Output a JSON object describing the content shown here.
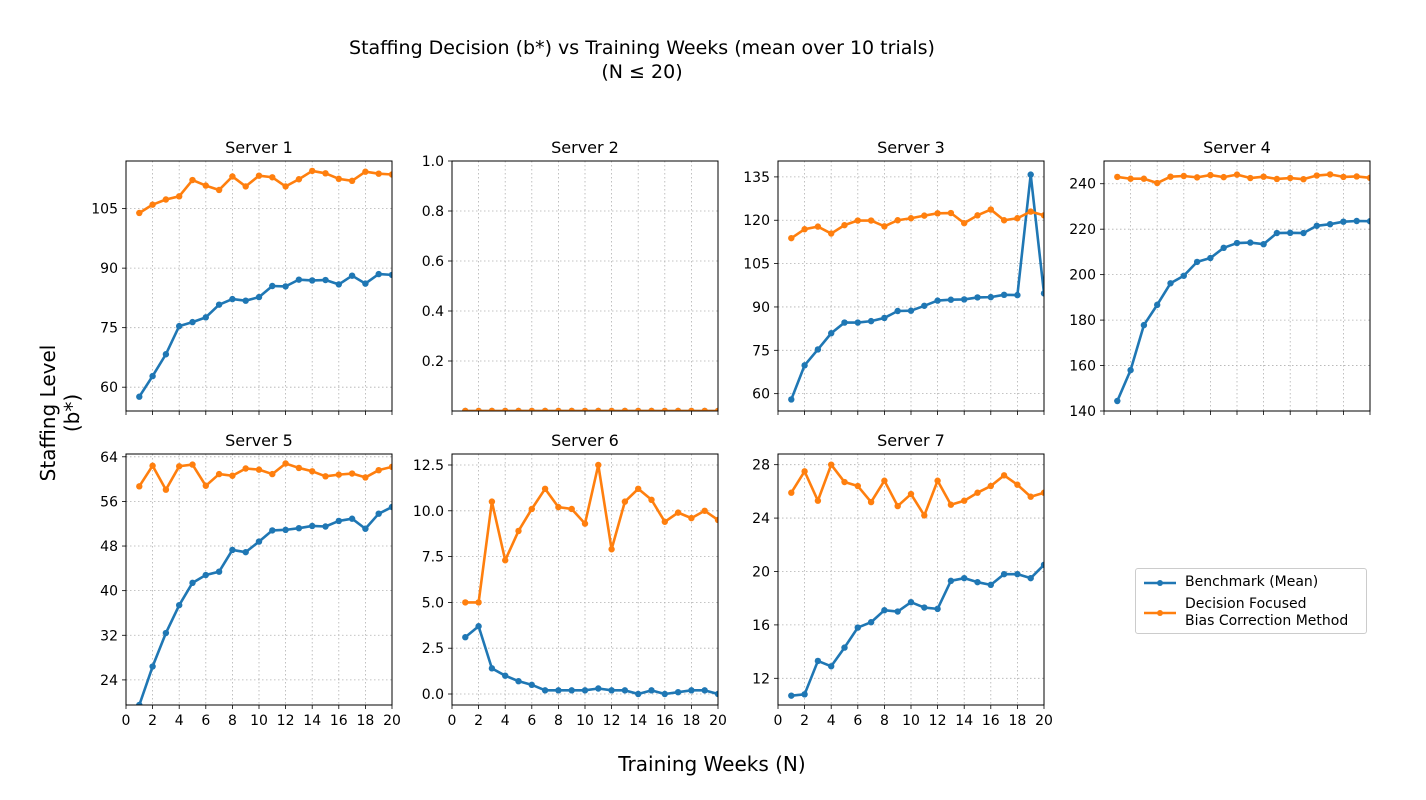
{
  "figure": {
    "title_line1": "Staffing Decision (b*) vs Training Weeks (mean over 10 trials)",
    "title_line2": "(N ≤ 20)",
    "xlabel": "Training Weeks (N)",
    "ylabel": "Staffing Level (b*)"
  },
  "legend": {
    "benchmark_label": "Benchmark (Mean)",
    "dfbc_label_line1": "Decision Focused",
    "dfbc_label_line2": "Bias Correction Method"
  },
  "colors": {
    "benchmark": "#1f77b4",
    "dfbc": "#ff7f0e",
    "grid": "#b0b0b0"
  },
  "chart_data": {
    "type": "line",
    "x": [
      1,
      2,
      3,
      4,
      5,
      6,
      7,
      8,
      9,
      10,
      11,
      12,
      13,
      14,
      15,
      16,
      17,
      18,
      19,
      20
    ],
    "xlim": [
      0,
      20
    ],
    "xticks": [
      0,
      2,
      4,
      6,
      8,
      10,
      12,
      14,
      16,
      18,
      20
    ],
    "series_names": [
      "Benchmark (Mean)",
      "Decision Focused Bias Correction Method"
    ],
    "panels": [
      {
        "title": "Server 1",
        "ylim": [
          54,
          117
        ],
        "yticks": [
          60,
          75,
          90,
          105
        ],
        "ytick_labels": [
          "60",
          "75",
          "90",
          "105"
        ],
        "series": [
          {
            "name": "Benchmark (Mean)",
            "values": [
              57.6,
              62.8,
              68.3,
              75.4,
              76.4,
              77.6,
              80.8,
              82.2,
              81.8,
              82.7,
              85.5,
              85.4,
              87.1,
              86.9,
              87.0,
              85.9,
              88.1,
              86.1,
              88.5,
              88.3
            ]
          },
          {
            "name": "Decision Focused Bias Correction Method",
            "values": [
              103.9,
              106.0,
              107.3,
              108.1,
              112.2,
              110.8,
              109.7,
              113.1,
              110.6,
              113.3,
              112.9,
              110.6,
              112.4,
              114.5,
              113.9,
              112.5,
              112.0,
              114.3,
              113.8,
              113.6
            ]
          }
        ]
      },
      {
        "title": "Server 2",
        "ylim": [
          0,
          1
        ],
        "yticks": [
          0.2,
          0.4,
          0.6,
          0.8,
          1.0
        ],
        "ytick_labels": [
          "0.2",
          "0.4",
          "0.6",
          "0.8",
          "1.0"
        ],
        "series": [
          {
            "name": "Benchmark (Mean)",
            "values": [
              0,
              0,
              0,
              0,
              0,
              0,
              0,
              0,
              0,
              0,
              0,
              0,
              0,
              0,
              0,
              0,
              0,
              0,
              0,
              0
            ]
          },
          {
            "name": "Decision Focused Bias Correction Method",
            "values": [
              0,
              0,
              0,
              0,
              0,
              0,
              0,
              0,
              0,
              0,
              0,
              0,
              0,
              0,
              0,
              0,
              0,
              0,
              0,
              0
            ]
          }
        ]
      },
      {
        "title": "Server 3",
        "ylim": [
          54,
          140.5
        ],
        "yticks": [
          60,
          75,
          90,
          105,
          120,
          135
        ],
        "ytick_labels": [
          "60",
          "75",
          "90",
          "105",
          "120",
          "135"
        ],
        "series": [
          {
            "name": "Benchmark (Mean)",
            "values": [
              58.0,
              69.8,
              75.3,
              80.9,
              84.6,
              84.6,
              85.1,
              86.2,
              88.6,
              88.7,
              90.4,
              92.2,
              92.5,
              92.6,
              93.3,
              93.4,
              94.2,
              94.1,
              135.8,
              94.7
            ]
          },
          {
            "name": "Decision Focused Bias Correction Method",
            "values": [
              113.8,
              116.9,
              117.8,
              115.4,
              118.3,
              119.9,
              119.9,
              117.9,
              120.0,
              120.7,
              121.6,
              122.4,
              122.5,
              119.0,
              121.7,
              123.7,
              120.0,
              120.7,
              123.0,
              121.7
            ]
          }
        ]
      },
      {
        "title": "Server 4",
        "ylim": [
          140,
          250
        ],
        "yticks": [
          140,
          160,
          180,
          200,
          220,
          240
        ],
        "ytick_labels": [
          "140",
          "160",
          "180",
          "200",
          "220",
          "240"
        ],
        "series": [
          {
            "name": "Benchmark (Mean)",
            "values": [
              144.4,
              158.0,
              177.8,
              186.7,
              196.2,
              199.5,
              205.6,
              207.3,
              211.8,
              213.9,
              214.1,
              213.4,
              218.3,
              218.4,
              218.3,
              221.5,
              222.2,
              223.3,
              223.6,
              223.5
            ]
          },
          {
            "name": "Decision Focused Bias Correction Method",
            "values": [
              243.0,
              242.2,
              242.2,
              240.3,
              243.1,
              243.4,
              242.8,
              243.8,
              242.9,
              244.0,
              242.5,
              243.1,
              242.1,
              242.5,
              242.0,
              243.6,
              244.1,
              243.0,
              243.2,
              242.6
            ]
          }
        ]
      },
      {
        "title": "Server 5",
        "ylim": [
          19.5,
          64.5
        ],
        "yticks": [
          24,
          32,
          40,
          48,
          56,
          64
        ],
        "ytick_labels": [
          "24",
          "32",
          "40",
          "48",
          "56",
          "64"
        ],
        "series": [
          {
            "name": "Benchmark (Mean)",
            "values": [
              19.5,
              26.4,
              32.4,
              37.4,
              41.4,
              42.8,
              43.4,
              47.3,
              46.9,
              48.8,
              50.8,
              50.9,
              51.2,
              51.6,
              51.5,
              52.5,
              52.9,
              51.1,
              53.8,
              55.0
            ]
          },
          {
            "name": "Decision Focused Bias Correction Method",
            "values": [
              58.7,
              62.4,
              58.1,
              62.3,
              62.6,
              58.8,
              60.9,
              60.6,
              61.9,
              61.7,
              60.9,
              62.8,
              62.0,
              61.4,
              60.5,
              60.8,
              61.0,
              60.3,
              61.6,
              62.2
            ]
          }
        ]
      },
      {
        "title": "Server 6",
        "ylim": [
          -0.6,
          13.1
        ],
        "yticks": [
          0.0,
          2.5,
          5.0,
          7.5,
          10.0,
          12.5
        ],
        "ytick_labels": [
          "0.0",
          "2.5",
          "5.0",
          "7.5",
          "10.0",
          "12.5"
        ],
        "series": [
          {
            "name": "Benchmark (Mean)",
            "values": [
              3.1,
              3.7,
              1.4,
              1.0,
              0.7,
              0.5,
              0.2,
              0.2,
              0.2,
              0.2,
              0.3,
              0.2,
              0.2,
              0.0,
              0.2,
              0.0,
              0.1,
              0.2,
              0.2,
              0.0
            ]
          },
          {
            "name": "Decision Focused Bias Correction Method",
            "values": [
              5.0,
              5.0,
              10.5,
              7.3,
              8.9,
              10.1,
              11.2,
              10.2,
              10.1,
              9.3,
              12.5,
              7.9,
              10.5,
              11.2,
              10.6,
              9.4,
              9.9,
              9.6,
              10.0,
              9.5
            ]
          }
        ]
      },
      {
        "title": "Server 7",
        "ylim": [
          10.0,
          28.8
        ],
        "yticks": [
          12,
          16,
          20,
          24,
          28
        ],
        "ytick_labels": [
          "12",
          "16",
          "20",
          "24",
          "28"
        ],
        "series": [
          {
            "name": "Benchmark (Mean)",
            "values": [
              10.7,
              10.8,
              13.3,
              12.9,
              14.3,
              15.8,
              16.2,
              17.1,
              17.0,
              17.7,
              17.3,
              17.2,
              19.3,
              19.5,
              19.2,
              19.0,
              19.8,
              19.8,
              19.5,
              20.5
            ]
          },
          {
            "name": "Decision Focused Bias Correction Method",
            "values": [
              25.9,
              27.5,
              25.3,
              28.0,
              26.7,
              26.4,
              25.2,
              26.8,
              24.9,
              25.8,
              24.2,
              26.8,
              25.0,
              25.3,
              25.9,
              26.4,
              27.2,
              26.5,
              25.6,
              25.9
            ]
          }
        ]
      }
    ]
  }
}
